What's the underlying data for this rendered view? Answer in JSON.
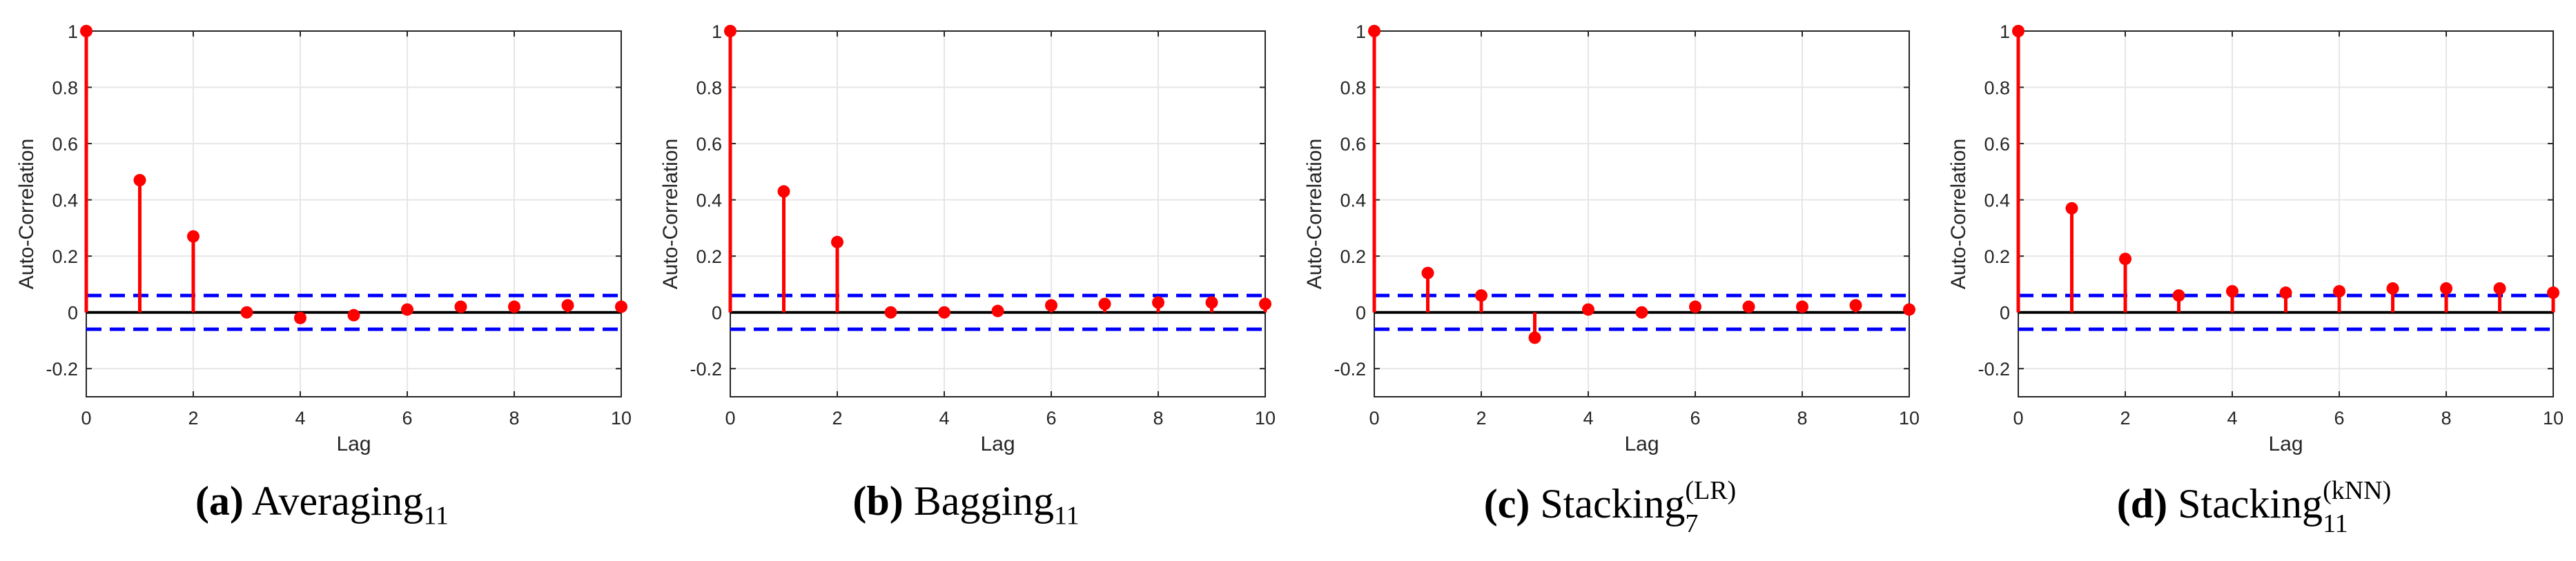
{
  "colors": {
    "stem": "#ff0000",
    "marker": "#ff0000",
    "bound": "#0000ff",
    "zero_line": "#000000",
    "grid": "#e6e6e6",
    "axes": "#262626"
  },
  "chart_data": [
    {
      "type": "stem",
      "caption": {
        "label": "(a)",
        "name": "Averaging",
        "sub": "11",
        "sup": ""
      },
      "xlabel": "Lag",
      "ylabel": "Auto-Correlation",
      "xlim": [
        0,
        10
      ],
      "ylim": [
        -0.3,
        1
      ],
      "xticks": [
        "0",
        "2",
        "4",
        "6",
        "8",
        "10"
      ],
      "yticks": [
        "-0.2",
        "0",
        "0.2",
        "0.4",
        "0.6",
        "0.8",
        "1"
      ],
      "x": [
        0,
        1,
        2,
        3,
        4,
        5,
        6,
        7,
        8,
        9,
        10
      ],
      "values": [
        1,
        0.47,
        0.27,
        0.0,
        -0.02,
        -0.01,
        0.01,
        0.02,
        0.02,
        0.025,
        0.02
      ],
      "confidence_bounds": [
        0.06,
        -0.06
      ]
    },
    {
      "type": "stem",
      "caption": {
        "label": "(b)",
        "name": "Bagging",
        "sub": "11",
        "sup": ""
      },
      "xlabel": "Lag",
      "ylabel": "Auto-Correlation",
      "xlim": [
        0,
        10
      ],
      "ylim": [
        -0.3,
        1
      ],
      "xticks": [
        "0",
        "2",
        "4",
        "6",
        "8",
        "10"
      ],
      "yticks": [
        "-0.2",
        "0",
        "0.2",
        "0.4",
        "0.6",
        "0.8",
        "1"
      ],
      "x": [
        0,
        1,
        2,
        3,
        4,
        5,
        6,
        7,
        8,
        9,
        10
      ],
      "values": [
        1,
        0.43,
        0.25,
        0.0,
        0.0,
        0.005,
        0.025,
        0.03,
        0.035,
        0.035,
        0.03
      ],
      "confidence_bounds": [
        0.06,
        -0.06
      ]
    },
    {
      "type": "stem",
      "caption": {
        "label": "(c)",
        "name": "Stacking",
        "sub": "7",
        "sup": "(LR)"
      },
      "xlabel": "Lag",
      "ylabel": "Auto-Correlation",
      "xlim": [
        0,
        10
      ],
      "ylim": [
        -0.3,
        1
      ],
      "xticks": [
        "0",
        "2",
        "4",
        "6",
        "8",
        "10"
      ],
      "yticks": [
        "-0.2",
        "0",
        "0.2",
        "0.4",
        "0.6",
        "0.8",
        "1"
      ],
      "x": [
        0,
        1,
        2,
        3,
        4,
        5,
        6,
        7,
        8,
        9,
        10
      ],
      "values": [
        1,
        0.14,
        0.06,
        -0.09,
        0.01,
        0.0,
        0.02,
        0.02,
        0.02,
        0.025,
        0.01
      ],
      "confidence_bounds": [
        0.06,
        -0.06
      ]
    },
    {
      "type": "stem",
      "caption": {
        "label": "(d)",
        "name": "Stacking",
        "sub": "11",
        "sup": "(kNN)"
      },
      "xlabel": "Lag",
      "ylabel": "Auto-Correlation",
      "xlim": [
        0,
        10
      ],
      "ylim": [
        -0.3,
        1
      ],
      "xticks": [
        "0",
        "2",
        "4",
        "6",
        "8",
        "10"
      ],
      "yticks": [
        "-0.2",
        "0",
        "0.2",
        "0.4",
        "0.6",
        "0.8",
        "1"
      ],
      "x": [
        0,
        1,
        2,
        3,
        4,
        5,
        6,
        7,
        8,
        9,
        10
      ],
      "values": [
        1,
        0.37,
        0.19,
        0.06,
        0.075,
        0.07,
        0.075,
        0.085,
        0.085,
        0.085,
        0.07
      ],
      "confidence_bounds": [
        0.06,
        -0.06
      ]
    }
  ]
}
